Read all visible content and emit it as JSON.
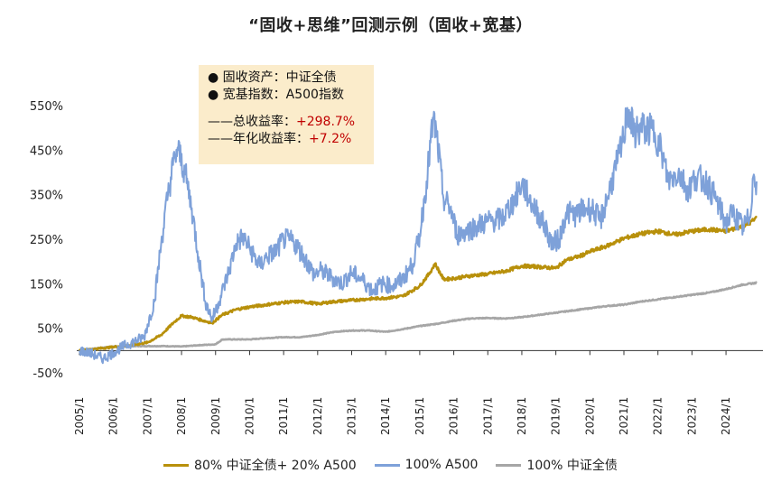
{
  "chart_data": {
    "type": "line",
    "title": "“固收+思维”回测示例（固收+宽基）",
    "xlabel": "",
    "ylabel": "",
    "ylim": [
      -50,
      550
    ],
    "y_ticks": [
      "550%",
      "450%",
      "350%",
      "250%",
      "150%",
      "50%",
      "-50%"
    ],
    "y_tick_values": [
      550,
      450,
      350,
      250,
      150,
      50,
      -50
    ],
    "x_ticks": [
      "2005/1",
      "2006/1",
      "2007/1",
      "2008/1",
      "2009/1",
      "2010/1",
      "2011/1",
      "2012/1",
      "2013/1",
      "2014/1",
      "2015/1",
      "2016/1",
      "2017/1",
      "2018/1",
      "2019/1",
      "2020/1",
      "2021/1",
      "2022/1",
      "2023/1",
      "2024/1"
    ],
    "x_range": [
      2005.0,
      2024.9
    ],
    "series": [
      {
        "name": "80% 中证全债+ 20% A500",
        "color": "#b8900b",
        "points": [
          [
            2005.0,
            0
          ],
          [
            2005.5,
            4
          ],
          [
            2006.0,
            8
          ],
          [
            2006.5,
            12
          ],
          [
            2007.0,
            18
          ],
          [
            2007.4,
            35
          ],
          [
            2007.8,
            65
          ],
          [
            2008.0,
            78
          ],
          [
            2008.3,
            75
          ],
          [
            2008.6,
            68
          ],
          [
            2008.9,
            62
          ],
          [
            2009.2,
            80
          ],
          [
            2009.6,
            92
          ],
          [
            2010.0,
            98
          ],
          [
            2010.5,
            103
          ],
          [
            2011.0,
            108
          ],
          [
            2011.5,
            110
          ],
          [
            2012.0,
            105
          ],
          [
            2012.5,
            110
          ],
          [
            2013.0,
            113
          ],
          [
            2013.5,
            116
          ],
          [
            2014.0,
            118
          ],
          [
            2014.5,
            122
          ],
          [
            2015.0,
            145
          ],
          [
            2015.3,
            175
          ],
          [
            2015.45,
            195
          ],
          [
            2015.7,
            160
          ],
          [
            2016.0,
            162
          ],
          [
            2016.5,
            168
          ],
          [
            2017.0,
            172
          ],
          [
            2017.5,
            178
          ],
          [
            2018.0,
            190
          ],
          [
            2018.5,
            188
          ],
          [
            2019.0,
            185
          ],
          [
            2019.3,
            203
          ],
          [
            2019.7,
            212
          ],
          [
            2020.0,
            222
          ],
          [
            2020.5,
            235
          ],
          [
            2021.0,
            252
          ],
          [
            2021.5,
            262
          ],
          [
            2022.0,
            268
          ],
          [
            2022.5,
            260
          ],
          [
            2023.0,
            268
          ],
          [
            2023.5,
            272
          ],
          [
            2024.0,
            268
          ],
          [
            2024.3,
            275
          ],
          [
            2024.6,
            282
          ],
          [
            2024.8,
            292
          ],
          [
            2024.9,
            298.7
          ]
        ]
      },
      {
        "name": "100% A500",
        "color": "#7ea1d9",
        "points": [
          [
            2005.0,
            0
          ],
          [
            2005.3,
            -5
          ],
          [
            2005.5,
            -12
          ],
          [
            2005.7,
            -18
          ],
          [
            2006.0,
            -5
          ],
          [
            2006.3,
            10
          ],
          [
            2006.6,
            20
          ],
          [
            2006.9,
            30
          ],
          [
            2007.2,
            110
          ],
          [
            2007.4,
            240
          ],
          [
            2007.6,
            350
          ],
          [
            2007.8,
            435
          ],
          [
            2007.9,
            450
          ],
          [
            2008.1,
            400
          ],
          [
            2008.3,
            320
          ],
          [
            2008.5,
            210
          ],
          [
            2008.7,
            110
          ],
          [
            2008.9,
            70
          ],
          [
            2009.1,
            110
          ],
          [
            2009.4,
            180
          ],
          [
            2009.6,
            240
          ],
          [
            2009.8,
            255
          ],
          [
            2010.0,
            230
          ],
          [
            2010.3,
            190
          ],
          [
            2010.5,
            210
          ],
          [
            2010.8,
            225
          ],
          [
            2011.0,
            250
          ],
          [
            2011.3,
            245
          ],
          [
            2011.6,
            210
          ],
          [
            2011.9,
            170
          ],
          [
            2012.1,
            180
          ],
          [
            2012.4,
            165
          ],
          [
            2012.7,
            150
          ],
          [
            2013.0,
            175
          ],
          [
            2013.3,
            160
          ],
          [
            2013.6,
            135
          ],
          [
            2013.9,
            150
          ],
          [
            2014.2,
            145
          ],
          [
            2014.5,
            160
          ],
          [
            2014.8,
            195
          ],
          [
            2015.0,
            260
          ],
          [
            2015.2,
            380
          ],
          [
            2015.4,
            520
          ],
          [
            2015.5,
            480
          ],
          [
            2015.7,
            340
          ],
          [
            2015.9,
            320
          ],
          [
            2016.1,
            260
          ],
          [
            2016.4,
            270
          ],
          [
            2016.7,
            280
          ],
          [
            2017.0,
            290
          ],
          [
            2017.4,
            295
          ],
          [
            2017.8,
            340
          ],
          [
            2018.0,
            375
          ],
          [
            2018.3,
            330
          ],
          [
            2018.6,
            290
          ],
          [
            2018.9,
            240
          ],
          [
            2019.1,
            250
          ],
          [
            2019.3,
            310
          ],
          [
            2019.6,
            305
          ],
          [
            2019.9,
            320
          ],
          [
            2020.1,
            315
          ],
          [
            2020.3,
            290
          ],
          [
            2020.5,
            340
          ],
          [
            2020.8,
            420
          ],
          [
            2021.0,
            480
          ],
          [
            2021.1,
            545
          ],
          [
            2021.3,
            490
          ],
          [
            2021.6,
            500
          ],
          [
            2021.9,
            490
          ],
          [
            2022.1,
            450
          ],
          [
            2022.3,
            380
          ],
          [
            2022.6,
            400
          ],
          [
            2022.9,
            360
          ],
          [
            2023.1,
            390
          ],
          [
            2023.4,
            380
          ],
          [
            2023.7,
            340
          ],
          [
            2024.0,
            285
          ],
          [
            2024.2,
            310
          ],
          [
            2024.5,
            275
          ],
          [
            2024.7,
            300
          ],
          [
            2024.8,
            390
          ],
          [
            2024.9,
            380
          ]
        ]
      },
      {
        "name": "100% 中证全债",
        "color": "#a6a6a6",
        "points": [
          [
            2005.0,
            0
          ],
          [
            2005.5,
            5
          ],
          [
            2006.0,
            9
          ],
          [
            2006.5,
            10
          ],
          [
            2007.0,
            10
          ],
          [
            2007.5,
            10
          ],
          [
            2008.0,
            9
          ],
          [
            2008.5,
            12
          ],
          [
            2009.0,
            14
          ],
          [
            2009.2,
            25
          ],
          [
            2009.6,
            25
          ],
          [
            2010.0,
            25
          ],
          [
            2010.5,
            28
          ],
          [
            2011.0,
            30
          ],
          [
            2011.5,
            30
          ],
          [
            2012.0,
            35
          ],
          [
            2012.5,
            42
          ],
          [
            2013.0,
            45
          ],
          [
            2013.5,
            45
          ],
          [
            2014.0,
            42
          ],
          [
            2014.5,
            48
          ],
          [
            2015.0,
            55
          ],
          [
            2015.5,
            60
          ],
          [
            2016.0,
            67
          ],
          [
            2016.5,
            72
          ],
          [
            2017.0,
            73
          ],
          [
            2017.5,
            72
          ],
          [
            2018.0,
            75
          ],
          [
            2018.5,
            80
          ],
          [
            2019.0,
            85
          ],
          [
            2019.5,
            90
          ],
          [
            2020.0,
            95
          ],
          [
            2020.5,
            100
          ],
          [
            2021.0,
            103
          ],
          [
            2021.5,
            110
          ],
          [
            2022.0,
            115
          ],
          [
            2022.5,
            120
          ],
          [
            2023.0,
            125
          ],
          [
            2023.5,
            130
          ],
          [
            2024.0,
            138
          ],
          [
            2024.5,
            148
          ],
          [
            2024.9,
            152
          ]
        ]
      }
    ],
    "legend_position": "bottom"
  },
  "info_box": {
    "line1": "● 固收资产：中证全债",
    "line2": "● 宽基指数：A500指数",
    "total_label": "——总收益率：",
    "total_value": "+298.7%",
    "annual_label": "——年化收益率：",
    "annual_value": "+7.2%"
  },
  "colors": {
    "mix": "#b8900b",
    "a500": "#7ea1d9",
    "bond": "#a6a6a6",
    "accent_red": "#c00000",
    "box_bg": "#fbeccb"
  }
}
